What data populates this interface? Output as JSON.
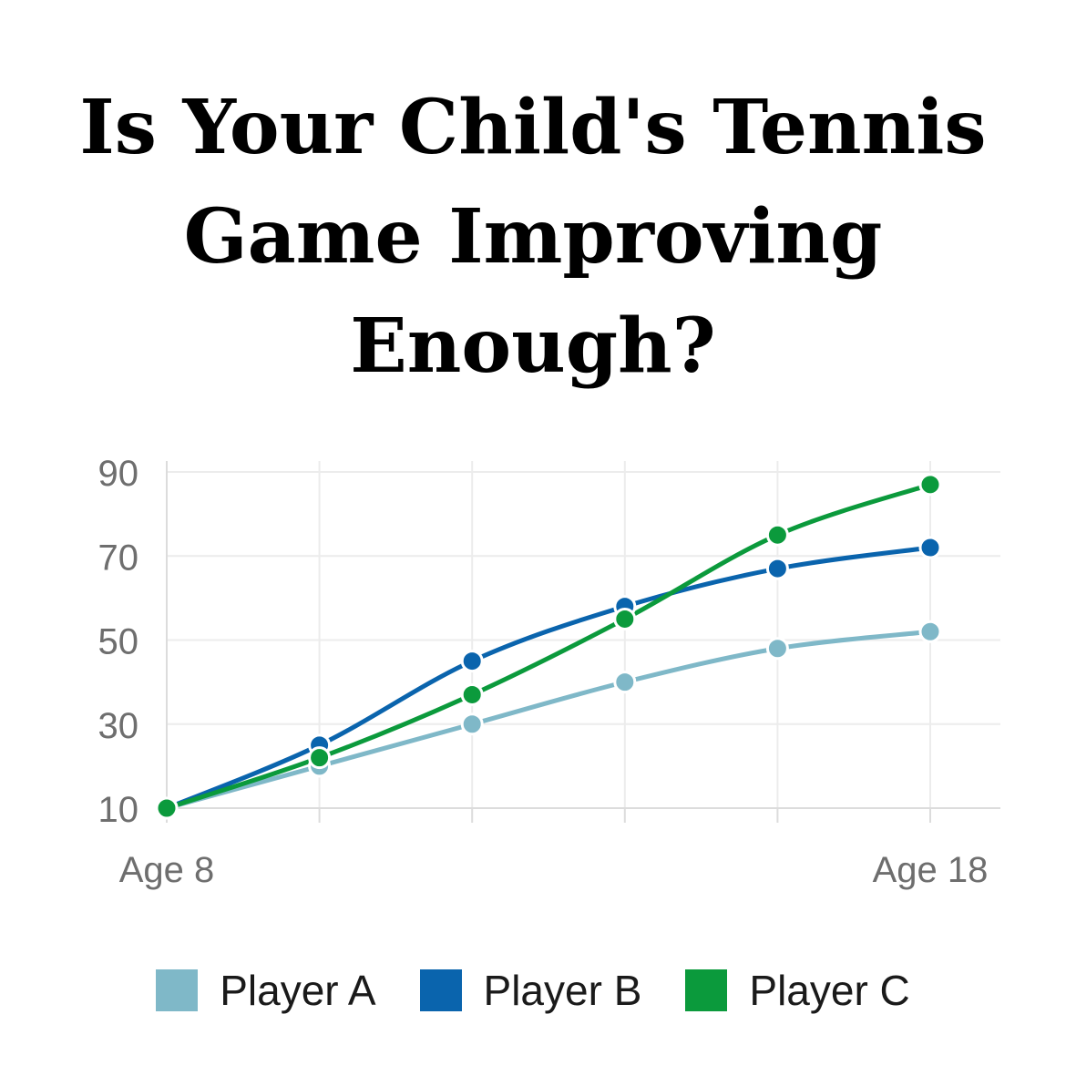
{
  "title_lines": [
    "Is Your Child's Tennis",
    "Game Improving",
    "Enough?"
  ],
  "chart_data": {
    "type": "line",
    "title": "Is Your Child's Tennis Game Improving Enough?",
    "x": [
      8,
      10,
      12,
      14,
      16,
      18
    ],
    "x_tick_labels": [
      {
        "x": 8,
        "label": "Age 8"
      },
      {
        "x": 18,
        "label": "Age 18"
      }
    ],
    "y_ticks": [
      10,
      30,
      50,
      70,
      90
    ],
    "xlim": [
      8,
      18
    ],
    "ylim": [
      10,
      90
    ],
    "grid": true,
    "legend_position": "bottom",
    "series": [
      {
        "name": "Player A",
        "color": "#7fb8c8",
        "values": [
          10,
          20,
          30,
          40,
          48,
          52
        ]
      },
      {
        "name": "Player B",
        "color": "#0a64ad",
        "values": [
          10,
          25,
          45,
          58,
          67,
          72
        ]
      },
      {
        "name": "Player C",
        "color": "#0b9a3c",
        "values": [
          10,
          22,
          37,
          55,
          75,
          87
        ]
      }
    ]
  }
}
